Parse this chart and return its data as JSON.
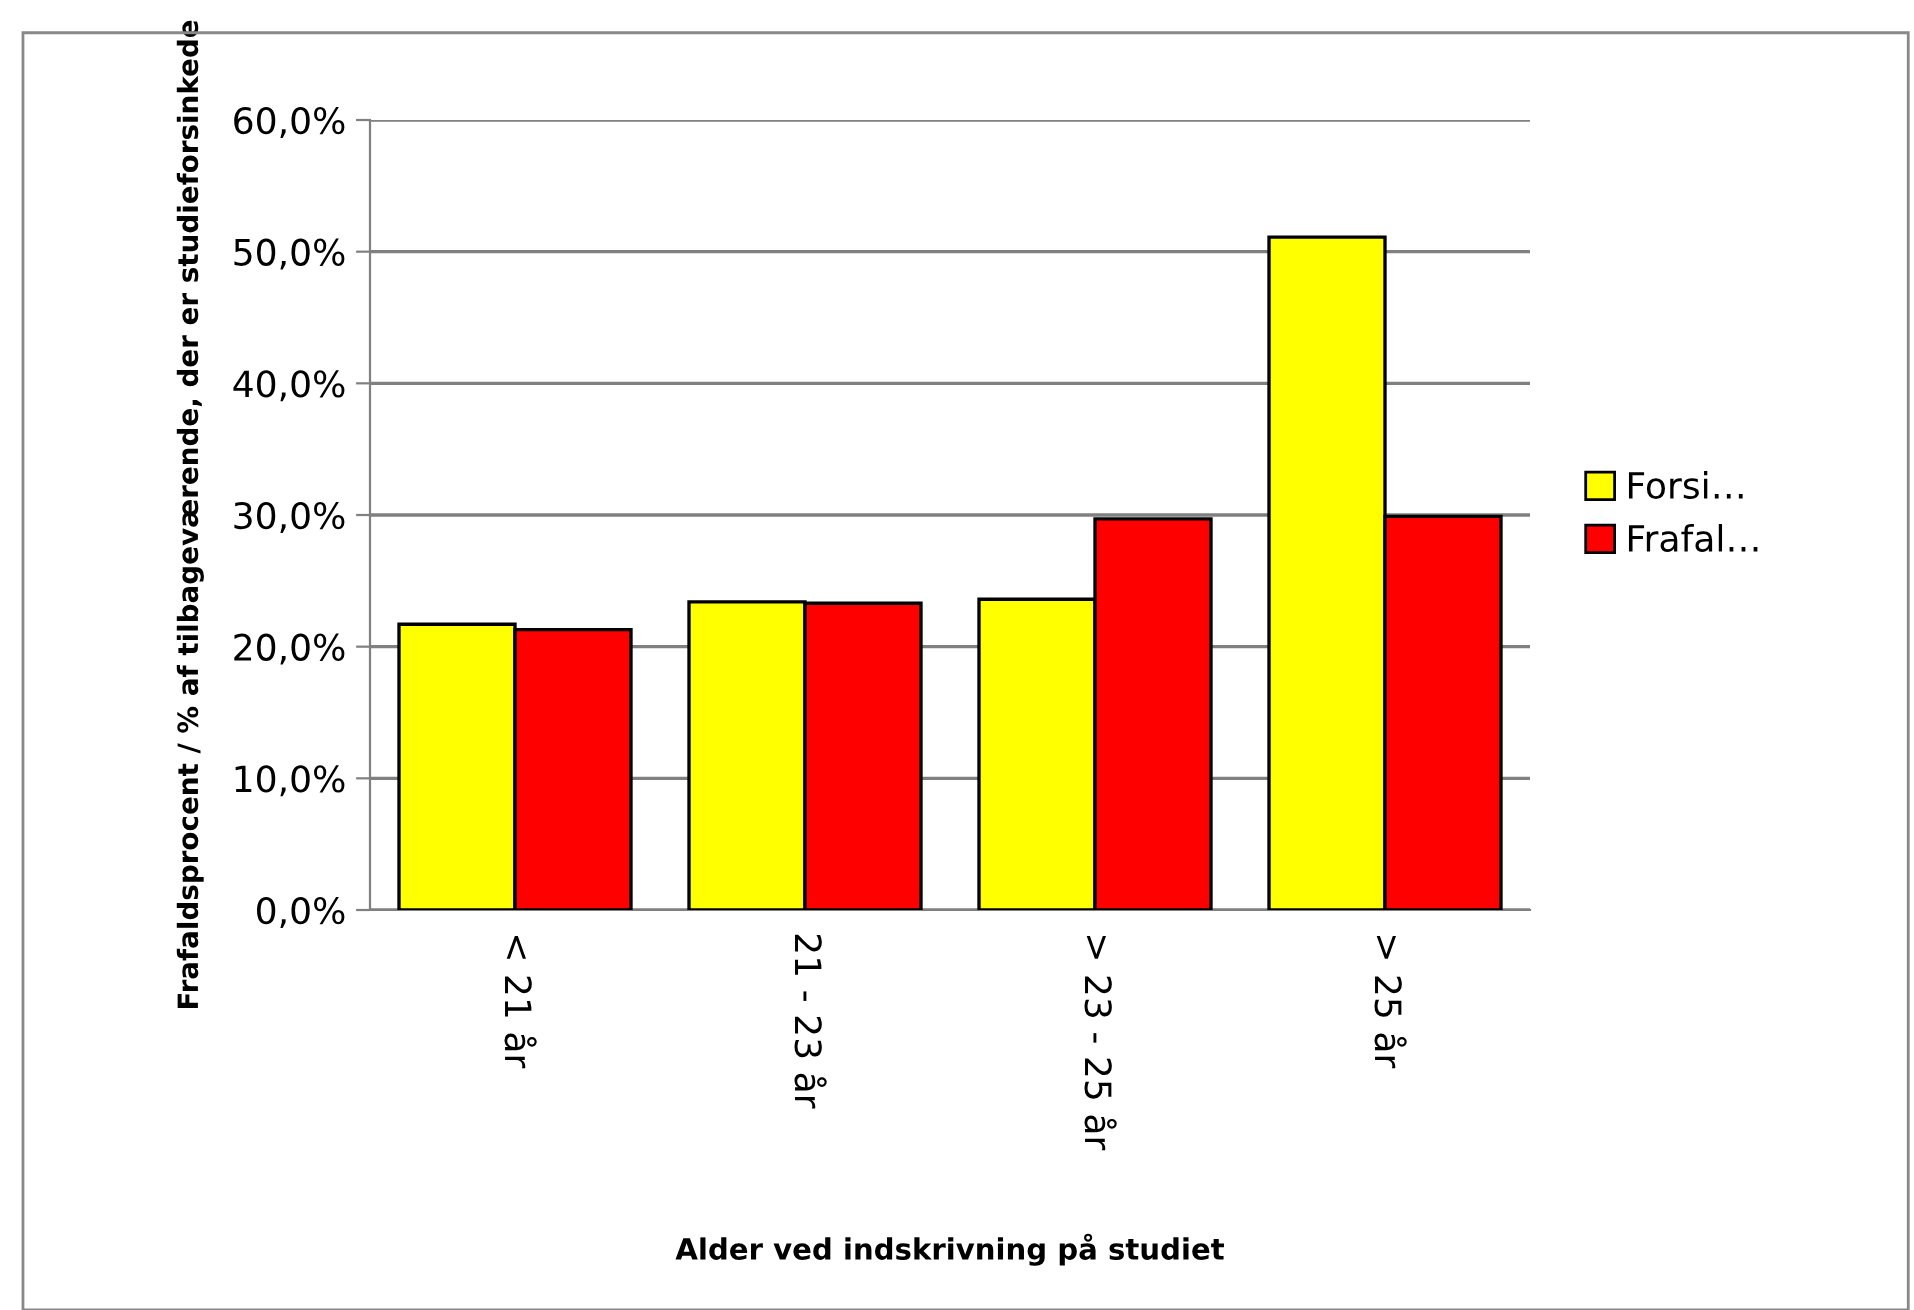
{
  "chart_data": {
    "type": "bar",
    "xlabel": "Alder ved indskrivning på studiet",
    "ylabel": "Frafaldsprocent / % af tilbageværende, der er studieforsinkede",
    "categories": [
      "< 21 år",
      "21 - 23 år",
      "> 23 - 25 år",
      "> 25 år"
    ],
    "series": [
      {
        "name": "Forsi…",
        "color": "#ffff00",
        "values": [
          21.7,
          23.4,
          23.6,
          51.1
        ]
      },
      {
        "name": "Frafal…",
        "color": "#ff0000",
        "values": [
          21.3,
          23.3,
          29.7,
          29.9
        ]
      }
    ],
    "ylim": [
      0,
      60
    ],
    "yticks": [
      {
        "value": 0,
        "label": "0,0%"
      },
      {
        "value": 10,
        "label": "10,0%"
      },
      {
        "value": 20,
        "label": "20,0%"
      },
      {
        "value": 30,
        "label": "30,0%"
      },
      {
        "value": 40,
        "label": "40,0%"
      },
      {
        "value": 50,
        "label": "50,0%"
      },
      {
        "value": 60,
        "label": "60,0%"
      }
    ],
    "grid": "y",
    "legend": "right"
  }
}
